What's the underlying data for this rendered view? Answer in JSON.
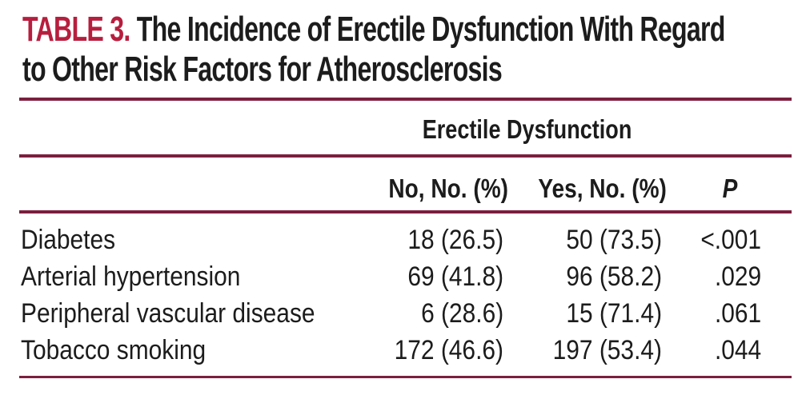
{
  "table": {
    "label": "TABLE 3.",
    "title": "The Incidence of Erectile Dysfunction With Regard to Other Risk Factors for Atherosclerosis",
    "spanner": "Erectile Dysfunction",
    "columns": [
      "No, No. (%)",
      "Yes, No. (%)",
      "P"
    ],
    "rows": [
      {
        "label": "Diabetes",
        "no": "18 (26.5)",
        "yes": "50 (73.5)",
        "p": "<.001"
      },
      {
        "label": "Arterial hypertension",
        "no": "69 (41.8)",
        "yes": "96 (58.2)",
        "p": ".029"
      },
      {
        "label": "Peripheral vascular disease",
        "no": "6 (28.6)",
        "yes": "15 (71.4)",
        "p": ".061"
      },
      {
        "label": "Tobacco smoking",
        "no": "172 (46.6)",
        "yes": "197 (53.4)",
        "p": ".044"
      }
    ],
    "colors": {
      "accent": "#b71e3e",
      "rule": "#7b1f3e",
      "text": "#1c1c1c",
      "bg": "#ffffff"
    }
  }
}
